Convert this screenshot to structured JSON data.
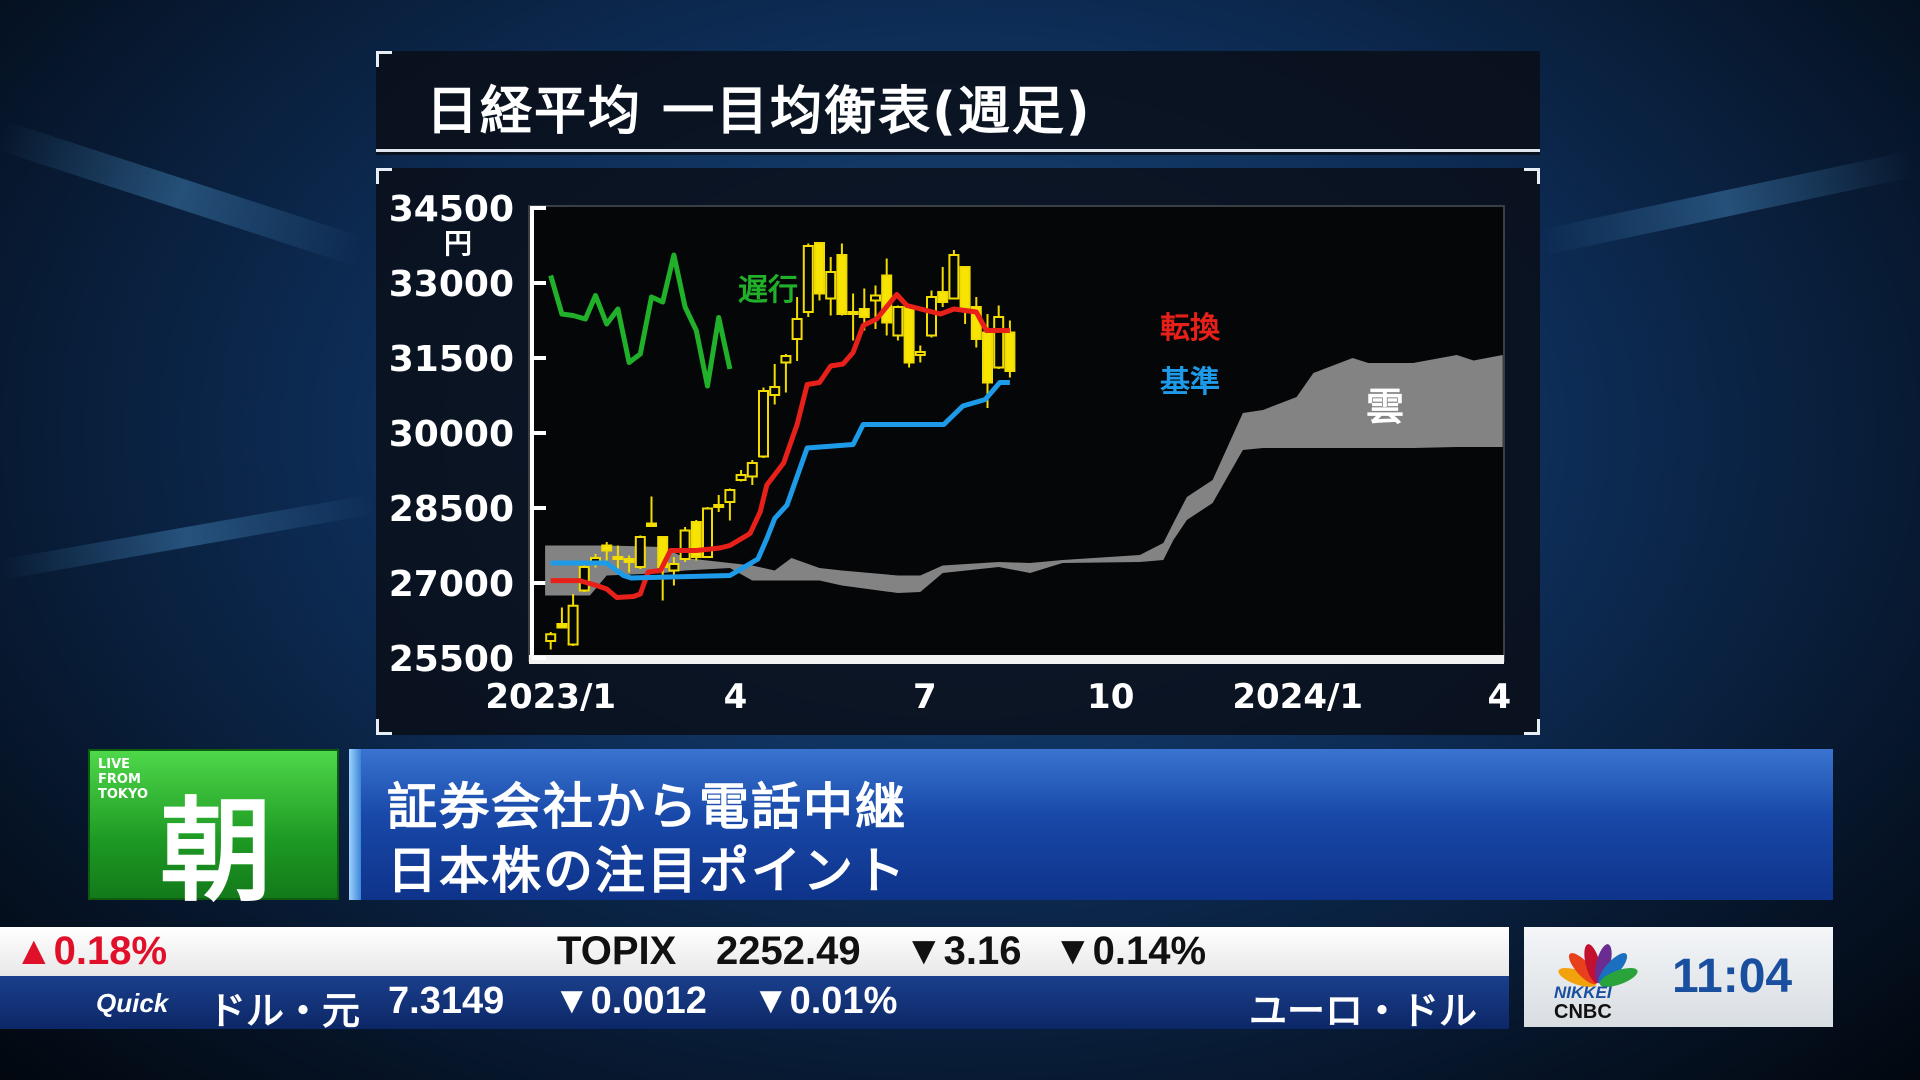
{
  "title": "日経平均 一目均衡表(週足)",
  "chart_data": {
    "type": "candlestick",
    "title": "日経平均 一目均衡表(週足)",
    "yunit": "円",
    "ylim": [
      25500,
      34500
    ],
    "yticks": [
      34500,
      33000,
      31500,
      30000,
      28500,
      27000,
      25500
    ],
    "xlim_weeks": [
      -2,
      85
    ],
    "xticks": [
      {
        "label": "2023/1",
        "w": 0
      },
      {
        "label": "4",
        "w": 16.5
      },
      {
        "label": "7",
        "w": 33.4
      },
      {
        "label": "10",
        "w": 50
      },
      {
        "label": "2024/1",
        "w": 66.7
      },
      {
        "label": "4",
        "w": 84.7
      }
    ],
    "candles_ohlc": [
      [
        25840,
        26020,
        25670,
        25975
      ],
      [
        26180,
        26510,
        26110,
        26110
      ],
      [
        25770,
        26780,
        25740,
        26545
      ],
      [
        26850,
        27350,
        26820,
        27320
      ],
      [
        27420,
        27580,
        27310,
        27500
      ],
      [
        27750,
        27820,
        27450,
        27650
      ],
      [
        27520,
        27750,
        27280,
        27490
      ],
      [
        27480,
        27550,
        27210,
        27420
      ],
      [
        27320,
        27950,
        27280,
        27920
      ],
      [
        28190,
        28730,
        28140,
        28140
      ],
      [
        27920,
        27920,
        26650,
        27320
      ],
      [
        27250,
        27520,
        26950,
        27380
      ],
      [
        27480,
        28120,
        27420,
        28050
      ],
      [
        28220,
        28260,
        27450,
        27520
      ],
      [
        27520,
        28520,
        27520,
        28490
      ],
      [
        28540,
        28760,
        28420,
        28560
      ],
      [
        28620,
        28890,
        28250,
        28860
      ],
      [
        29060,
        29260,
        29030,
        29160
      ],
      [
        29130,
        29460,
        28960,
        29400
      ],
      [
        29530,
        30910,
        29500,
        30840
      ],
      [
        30760,
        31380,
        30570,
        30920
      ],
      [
        31410,
        31580,
        30810,
        31540
      ],
      [
        31880,
        32720,
        31440,
        32280
      ],
      [
        32420,
        33790,
        32320,
        33740
      ],
      [
        33800,
        33800,
        32650,
        32790
      ],
      [
        32690,
        33520,
        32350,
        33220
      ],
      [
        33560,
        33790,
        32350,
        32380
      ],
      [
        32400,
        32790,
        31850,
        32420
      ],
      [
        32480,
        32890,
        32050,
        32320
      ],
      [
        32650,
        32950,
        32080,
        32750
      ],
      [
        33150,
        33490,
        31950,
        32210
      ],
      [
        31950,
        32550,
        31850,
        32520
      ],
      [
        32520,
        32550,
        31310,
        31410
      ],
      [
        31560,
        31750,
        31410,
        31620
      ],
      [
        31950,
        32850,
        31910,
        32720
      ],
      [
        32820,
        33320,
        32520,
        32620
      ],
      [
        32690,
        33660,
        32690,
        33560
      ],
      [
        33320,
        33320,
        32180,
        32480
      ],
      [
        32520,
        32720,
        31710,
        31880
      ],
      [
        32010,
        32380,
        30500,
        31010
      ],
      [
        31310,
        32550,
        31280,
        32320
      ],
      [
        32010,
        32250,
        31110,
        31240
      ]
    ],
    "series": [
      {
        "name": "転換",
        "color": "#e8201a",
        "points": [
          [
            0,
            27048
          ],
          [
            2.6,
            27048
          ],
          [
            4.1,
            26950
          ],
          [
            5,
            26880
          ],
          [
            5.9,
            26710
          ],
          [
            7.4,
            26730
          ],
          [
            8,
            26780
          ],
          [
            8.7,
            27220
          ],
          [
            9.8,
            27250
          ],
          [
            10.7,
            27650
          ],
          [
            13,
            27650
          ],
          [
            15.1,
            27700
          ],
          [
            16,
            27750
          ],
          [
            17.8,
            27990
          ],
          [
            18.7,
            28420
          ],
          [
            19.3,
            28960
          ],
          [
            20.8,
            29400
          ],
          [
            22,
            30170
          ],
          [
            22.9,
            30970
          ],
          [
            24,
            31010
          ],
          [
            25,
            31340
          ],
          [
            26.1,
            31380
          ],
          [
            27,
            31610
          ],
          [
            27.9,
            32150
          ],
          [
            29.1,
            32280
          ],
          [
            30.9,
            32770
          ],
          [
            31.8,
            32550
          ],
          [
            34.8,
            32380
          ],
          [
            36,
            32480
          ],
          [
            38,
            32420
          ],
          [
            38.9,
            32050
          ],
          [
            41,
            32050
          ]
        ]
      },
      {
        "name": "基準",
        "color": "#1e9be8",
        "points": [
          [
            0,
            27400
          ],
          [
            5,
            27400
          ],
          [
            6.5,
            27150
          ],
          [
            7.2,
            27100
          ],
          [
            16,
            27150
          ],
          [
            17,
            27280
          ],
          [
            18.5,
            27480
          ],
          [
            19.3,
            27890
          ],
          [
            20,
            28290
          ],
          [
            21.1,
            28560
          ],
          [
            22.9,
            29700
          ],
          [
            27,
            29770
          ],
          [
            27.9,
            30170
          ],
          [
            35.1,
            30170
          ],
          [
            36.8,
            30540
          ],
          [
            38.8,
            30670
          ],
          [
            40.1,
            31010
          ],
          [
            41,
            31010
          ]
        ]
      },
      {
        "name": "遅行",
        "color": "#21b02a",
        "points": [
          [
            0,
            33150
          ],
          [
            1,
            32380
          ],
          [
            2,
            32350
          ],
          [
            3.1,
            32280
          ],
          [
            4,
            32750
          ],
          [
            5,
            32180
          ],
          [
            6,
            32480
          ],
          [
            7,
            31410
          ],
          [
            8,
            31580
          ],
          [
            9,
            32720
          ],
          [
            10,
            32620
          ],
          [
            11,
            33560
          ],
          [
            12,
            32520
          ],
          [
            13,
            32050
          ],
          [
            14,
            30940
          ],
          [
            15,
            32310
          ],
          [
            16,
            31280
          ]
        ]
      }
    ],
    "cloud": {
      "name": "雲",
      "color": "#8a8a8a",
      "points_upper_lower": [
        [
          -0.5,
          27750,
          26750
        ],
        [
          3.5,
          27750,
          26750
        ],
        [
          5,
          27750,
          27150
        ],
        [
          10,
          27720,
          27200
        ],
        [
          12,
          27500,
          27250
        ],
        [
          16,
          27400,
          27300
        ],
        [
          18,
          27350,
          27050
        ],
        [
          20,
          27250,
          27050
        ],
        [
          21.5,
          27500,
          27050
        ],
        [
          24,
          27300,
          27050
        ],
        [
          26,
          27250,
          26950
        ],
        [
          31,
          27150,
          26800
        ],
        [
          33,
          27150,
          26820
        ],
        [
          35,
          27350,
          27200
        ],
        [
          40,
          27420,
          27320
        ],
        [
          42.8,
          27400,
          27200
        ],
        [
          45.7,
          27460,
          27400
        ],
        [
          52.6,
          27560,
          27420
        ],
        [
          54.7,
          27800,
          27460
        ],
        [
          55.6,
          28200,
          27860
        ],
        [
          56.8,
          28720,
          28260
        ],
        [
          59.1,
          29060,
          28600
        ],
        [
          61.8,
          30400,
          29660
        ],
        [
          63.6,
          30460,
          29700
        ],
        [
          66.6,
          30720,
          29700
        ],
        [
          68.1,
          31200,
          29700
        ],
        [
          71.6,
          31500,
          29700
        ],
        [
          73,
          31400,
          29700
        ],
        [
          77,
          31400,
          29700
        ],
        [
          80.9,
          31560,
          29720
        ],
        [
          82.4,
          31450,
          29720
        ],
        [
          85,
          31560,
          29720
        ]
      ]
    }
  },
  "segment": {
    "live": [
      "LIVE",
      "FROM",
      "TOKYO"
    ],
    "badge": "朝",
    "line1": "証券会社から電話中継",
    "line2": "日本株の注目ポイント"
  },
  "ticker": {
    "row1": {
      "change_pct_prev": "▲0.18%",
      "name": "TOPIX",
      "value": "2252.49",
      "change": "▼3.16",
      "change_pct": "▼0.14%"
    },
    "row2": {
      "source": "Quick",
      "pair": "ドル・元",
      "value": "7.3149",
      "change": "▼0.0012",
      "change_pct": "▼0.01%",
      "next_pair": "ユーロ・ドル"
    }
  },
  "clock": {
    "logo_top": "NIKKEI",
    "logo_bottom": "CNBC",
    "time": "11:04"
  }
}
